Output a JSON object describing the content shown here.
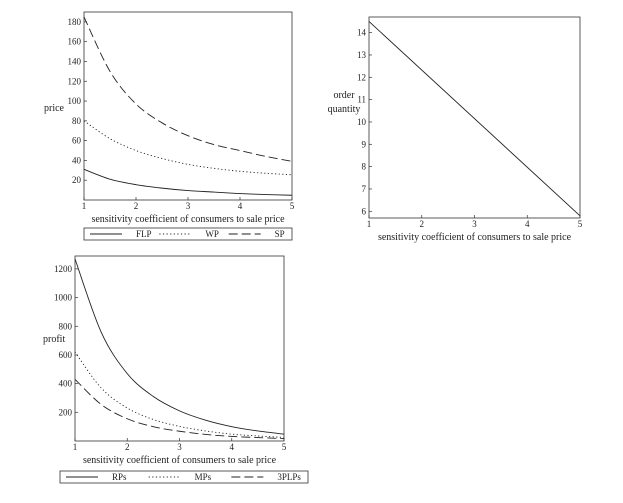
{
  "chart_data": [
    {
      "type": "line",
      "ylabel": "price",
      "xlabel": "sensitivity coefficient of consumers to sale price",
      "xlim": [
        1,
        5
      ],
      "ylim": [
        0,
        190
      ],
      "xticks": [
        "1",
        "2",
        "3",
        "4",
        "5"
      ],
      "yticks": [
        "20",
        "40",
        "60",
        "80",
        "100",
        "120",
        "140",
        "160",
        "180"
      ],
      "ytick_values": [
        20,
        40,
        60,
        80,
        100,
        120,
        140,
        160,
        180
      ],
      "legend_position": "bottom",
      "x": [
        1,
        1.5,
        2,
        2.5,
        3,
        3.5,
        4,
        4.5,
        5
      ],
      "series": [
        {
          "name": "FLP",
          "style": "solid",
          "values": [
            31,
            21,
            15.5,
            12,
            9.5,
            8,
            6.5,
            5.5,
            4.8
          ]
        },
        {
          "name": "WP",
          "style": "dotted",
          "values": [
            80,
            62,
            50,
            42,
            36,
            32,
            29,
            27,
            25.5
          ]
        },
        {
          "name": "SP",
          "style": "dashed",
          "values": [
            185,
            130,
            97,
            78,
            65,
            56,
            50,
            44,
            39
          ]
        }
      ]
    },
    {
      "type": "line",
      "ylabel": "order quantity",
      "xlabel": "sensitivity coefficient of consumers to sale price",
      "xlim": [
        1,
        5
      ],
      "ylim": [
        5.7,
        14.7
      ],
      "xticks": [
        "1",
        "2",
        "3",
        "4",
        "5"
      ],
      "yticks": [
        "6",
        "7",
        "8",
        "9",
        "10",
        "11",
        "12",
        "13",
        "14"
      ],
      "ytick_values": [
        6,
        7,
        8,
        9,
        10,
        11,
        12,
        13,
        14
      ],
      "x": [
        1,
        5
      ],
      "series": [
        {
          "style": "solid",
          "values": [
            14.5,
            5.8
          ]
        }
      ]
    },
    {
      "type": "line",
      "ylabel": "profit",
      "xlabel": "sensitivity coefficient of consumers to sale price",
      "xlim": [
        1,
        5
      ],
      "ylim": [
        0,
        1290
      ],
      "xticks": [
        "1",
        "2",
        "3",
        "4",
        "5"
      ],
      "yticks": [
        "200",
        "400",
        "600",
        "800",
        "1000",
        "1200"
      ],
      "ytick_values": [
        200,
        400,
        600,
        800,
        1000,
        1200
      ],
      "legend_position": "bottom",
      "x": [
        1,
        1.5,
        2,
        2.5,
        3,
        3.5,
        4,
        4.5,
        5
      ],
      "series": [
        {
          "name": "RPs",
          "style": "solid",
          "values": [
            1270,
            760,
            470,
            310,
            210,
            145,
            100,
            70,
            48
          ]
        },
        {
          "name": "MPs",
          "style": "dotted",
          "values": [
            620,
            370,
            230,
            150,
            102,
            70,
            48,
            35,
            25
          ]
        },
        {
          "name": "3PLPs",
          "style": "dashed",
          "values": [
            430,
            255,
            155,
            100,
            68,
            46,
            32,
            24,
            17
          ]
        }
      ]
    }
  ]
}
